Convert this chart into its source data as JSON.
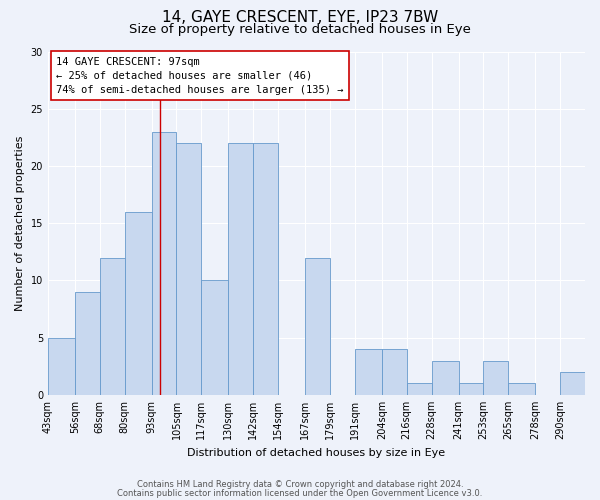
{
  "title": "14, GAYE CRESCENT, EYE, IP23 7BW",
  "subtitle": "Size of property relative to detached houses in Eye",
  "xlabel": "Distribution of detached houses by size in Eye",
  "ylabel": "Number of detached properties",
  "bar_labels": [
    "43sqm",
    "56sqm",
    "68sqm",
    "80sqm",
    "93sqm",
    "105sqm",
    "117sqm",
    "130sqm",
    "142sqm",
    "154sqm",
    "167sqm",
    "179sqm",
    "191sqm",
    "204sqm",
    "216sqm",
    "228sqm",
    "241sqm",
    "253sqm",
    "265sqm",
    "278sqm",
    "290sqm"
  ],
  "bar_values": [
    5,
    9,
    12,
    16,
    23,
    22,
    10,
    22,
    22,
    0,
    12,
    0,
    4,
    4,
    1,
    3,
    1,
    3,
    1,
    0,
    2
  ],
  "bin_edges": [
    43,
    56,
    68,
    80,
    93,
    105,
    117,
    130,
    142,
    154,
    167,
    179,
    191,
    204,
    216,
    228,
    241,
    253,
    265,
    278,
    290,
    302
  ],
  "bar_color": "#c8d8ef",
  "bar_edge_color": "#6699cc",
  "vline_x": 97,
  "vline_color": "#cc0000",
  "annotation_text": "14 GAYE CRESCENT: 97sqm\n← 25% of detached houses are smaller (46)\n74% of semi-detached houses are larger (135) →",
  "annotation_box_color": "#ffffff",
  "annotation_box_edge": "#cc0000",
  "ylim": [
    0,
    30
  ],
  "yticks": [
    0,
    5,
    10,
    15,
    20,
    25,
    30
  ],
  "footer1": "Contains HM Land Registry data © Crown copyright and database right 2024.",
  "footer2": "Contains public sector information licensed under the Open Government Licence v3.0.",
  "background_color": "#eef2fa",
  "grid_color": "#ffffff",
  "title_fontsize": 11,
  "subtitle_fontsize": 9.5,
  "axis_label_fontsize": 8,
  "tick_fontsize": 7,
  "annotation_fontsize": 7.5,
  "footer_fontsize": 6
}
